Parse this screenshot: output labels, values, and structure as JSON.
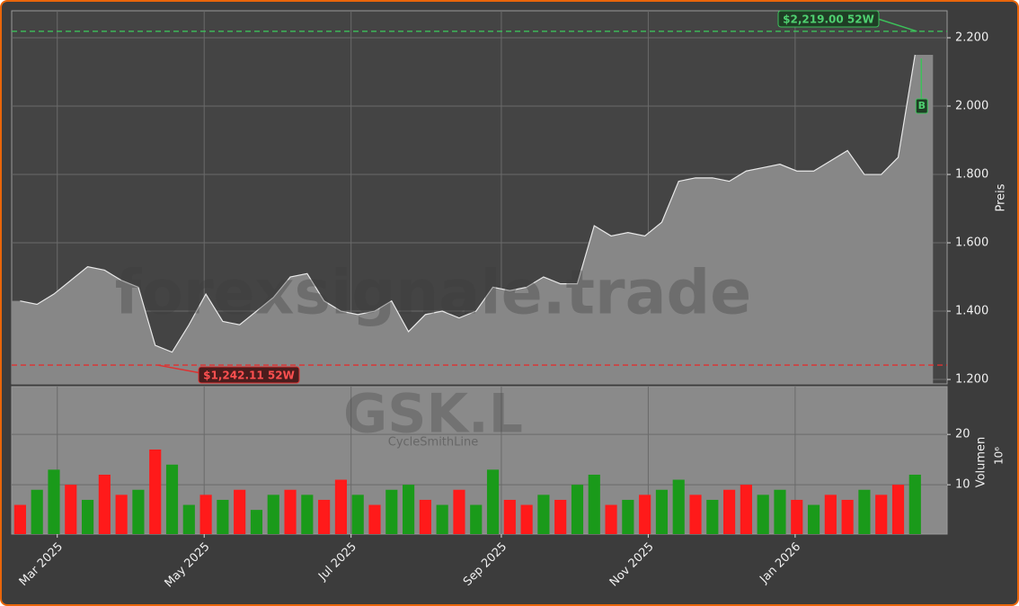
{
  "chart_data": [
    {
      "type": "area",
      "ticker": "GSK.L",
      "watermark": "forexsignale.trade",
      "subtitle": "CycleSmithLine",
      "y_label": "Preis",
      "categories": [
        null,
        null,
        null,
        null,
        null,
        null,
        null,
        null,
        null,
        null,
        null,
        null,
        null,
        null,
        null,
        null,
        null,
        null,
        null,
        null,
        null,
        null,
        null,
        null,
        null,
        null,
        null,
        null,
        null,
        null,
        null,
        null,
        null,
        null,
        null,
        null,
        null,
        null,
        null,
        null,
        null,
        null,
        null,
        null,
        null,
        null,
        null,
        null,
        null,
        null,
        null,
        null,
        null,
        null
      ],
      "series": [
        {
          "color": "#e8e8e8",
          "values": [
            1430,
            1420,
            1450,
            1490,
            1530,
            1520,
            1490,
            1470,
            1300,
            1280,
            1360,
            1450,
            1370,
            1360,
            1400,
            1440,
            1500,
            1510,
            1430,
            1400,
            1390,
            1400,
            1430,
            1340,
            1390,
            1400,
            1380,
            1400,
            1470,
            1460,
            1470,
            1500,
            1480,
            1480,
            1650,
            1620,
            1630,
            1620,
            1660,
            1780,
            1790,
            1790,
            1780,
            1810,
            1820,
            1830,
            1810,
            1810,
            1840,
            1870,
            1800,
            1800,
            1850,
            2150
          ]
        }
      ],
      "xlim": [
        -0.5,
        54.9
      ],
      "ylim": [
        1187,
        2279
      ],
      "yticks": [
        {
          "value": 1200,
          "label": "1.200"
        },
        {
          "value": 1400,
          "label": "1.400"
        },
        {
          "value": 1600,
          "label": "1.600"
        },
        {
          "value": 1800,
          "label": "1.800"
        },
        {
          "value": 2000,
          "label": "2.000"
        },
        {
          "value": 2200,
          "label": "2.200"
        }
      ],
      "grid": true,
      "high_52w": 2219.0,
      "high_52w_label": "$2,219.00 52W",
      "low_52w": 1242.11,
      "low_52w_label": "$1,242.11 52W",
      "signal": {
        "label": "B",
        "value": 2000
      }
    },
    {
      "type": "bar",
      "y_label": "Volumen",
      "y_offset_label": "10⁶",
      "categories": [
        null,
        null,
        null,
        null,
        null,
        null,
        null,
        null,
        null,
        null,
        null,
        null,
        null,
        null,
        null,
        null,
        null,
        null,
        null,
        null,
        null,
        null,
        null,
        null,
        null,
        null,
        null,
        null,
        null,
        null,
        null,
        null,
        null,
        null,
        null,
        null,
        null,
        null,
        null,
        null,
        null,
        null,
        null,
        null,
        null,
        null,
        null,
        null,
        null,
        null,
        null,
        null,
        null,
        null
      ],
      "values": [
        6,
        9,
        13,
        10,
        7,
        12,
        8,
        9,
        17,
        14,
        6,
        8,
        7,
        9,
        5,
        8,
        9,
        8,
        7,
        11,
        8,
        6,
        9,
        10,
        7,
        6,
        9,
        6,
        13,
        7,
        6,
        8,
        7,
        10,
        12,
        6,
        7,
        8,
        9,
        11,
        8,
        7,
        9,
        10,
        8,
        9,
        7,
        6,
        8,
        7,
        9,
        8,
        10,
        12
      ],
      "colors": [
        "#ff1a1a",
        "#1a9a1a",
        "#1a9a1a",
        "#ff1a1a",
        "#1a9a1a",
        "#ff1a1a",
        "#ff1a1a",
        "#1a9a1a",
        "#ff1a1a",
        "#1a9a1a",
        "#1a9a1a",
        "#ff1a1a",
        "#1a9a1a",
        "#ff1a1a",
        "#1a9a1a",
        "#1a9a1a",
        "#ff1a1a",
        "#1a9a1a",
        "#ff1a1a",
        "#ff1a1a",
        "#1a9a1a",
        "#ff1a1a",
        "#1a9a1a",
        "#1a9a1a",
        "#ff1a1a",
        "#1a9a1a",
        "#ff1a1a",
        "#1a9a1a",
        "#1a9a1a",
        "#ff1a1a",
        "#ff1a1a",
        "#1a9a1a",
        "#ff1a1a",
        "#1a9a1a",
        "#1a9a1a",
        "#ff1a1a",
        "#1a9a1a",
        "#ff1a1a",
        "#1a9a1a",
        "#1a9a1a",
        "#ff1a1a",
        "#1a9a1a",
        "#ff1a1a",
        "#ff1a1a",
        "#1a9a1a",
        "#1a9a1a",
        "#ff1a1a",
        "#1a9a1a",
        "#ff1a1a",
        "#ff1a1a",
        "#1a9a1a",
        "#ff1a1a",
        "#ff1a1a",
        "#1a9a1a"
      ],
      "xlim": [
        -0.5,
        54.9
      ],
      "ylim": [
        0.2,
        29.5
      ],
      "yticks": [
        10,
        20
      ],
      "grid": true,
      "xticks": [
        {
          "value": 2.2,
          "label": "Mar 2025"
        },
        {
          "value": 10.9,
          "label": "May 2025"
        },
        {
          "value": 19.6,
          "label": "Jul 2025"
        },
        {
          "value": 28.5,
          "label": "Sep 2025"
        },
        {
          "value": 37.2,
          "label": "Nov 2025"
        },
        {
          "value": 45.9,
          "label": "Jan 2026"
        }
      ]
    }
  ]
}
